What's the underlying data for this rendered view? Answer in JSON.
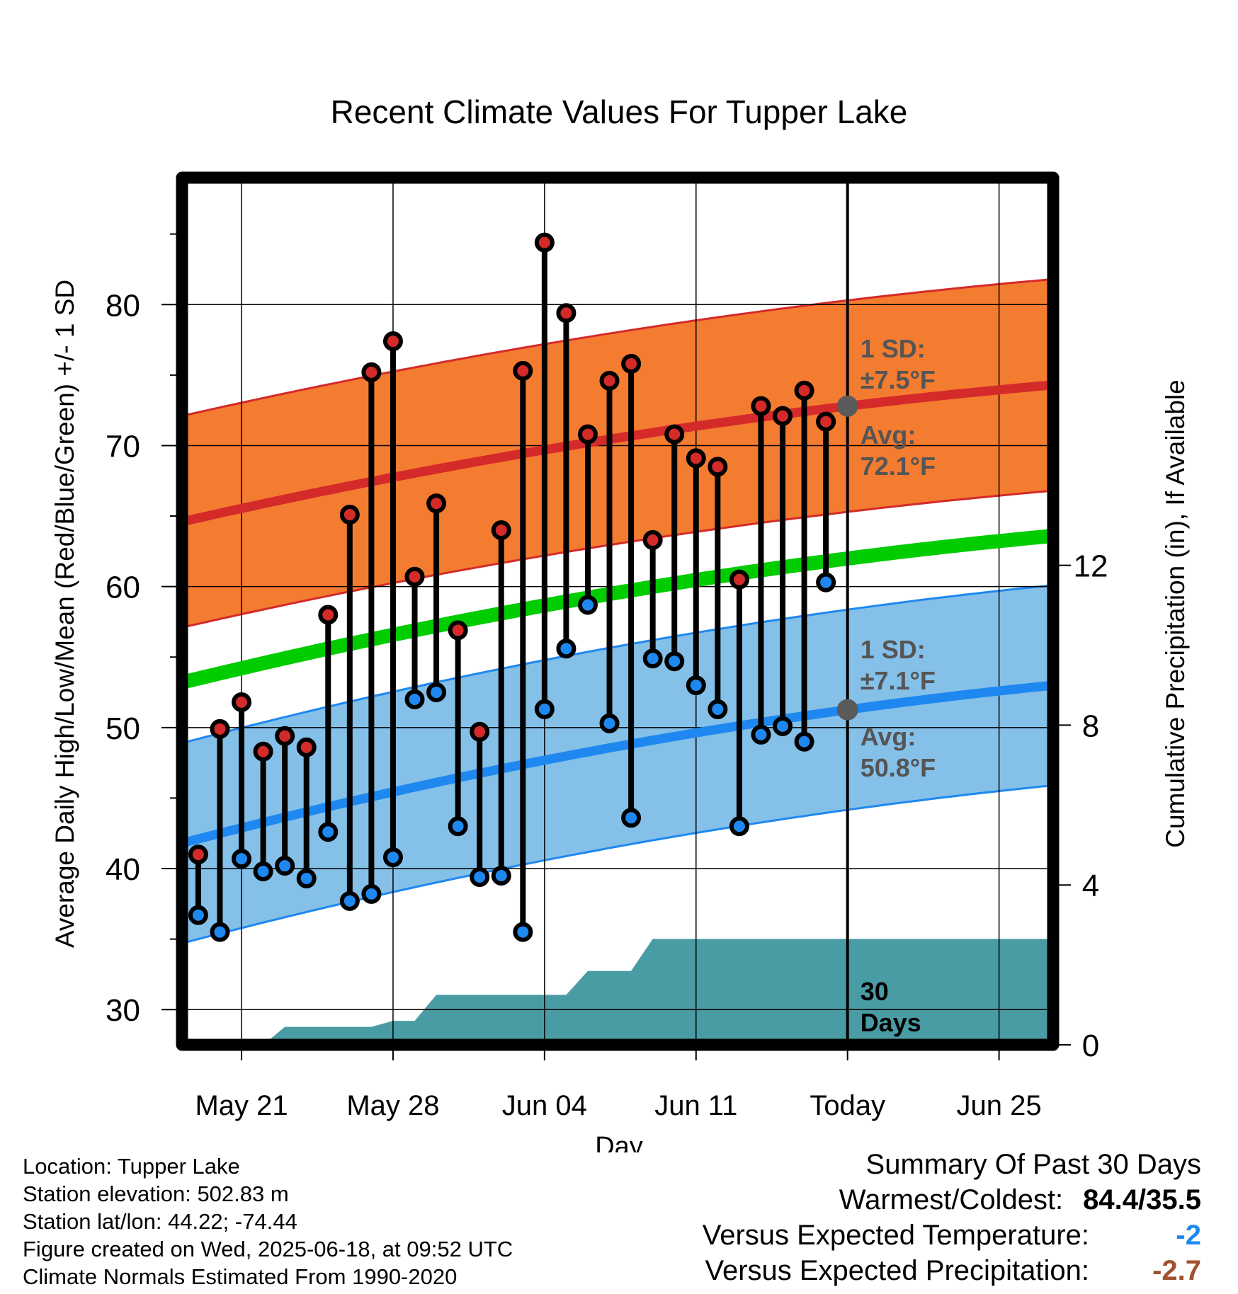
{
  "chart_data": {
    "type": "line",
    "title": "Recent Climate Values For Tupper Lake",
    "xlabel": "Day",
    "ylabel": "Average Daily High/Low/Mean (Red/Blue/Green) +/- 1 SD",
    "y2label": "Cumulative Precipitation (in), If Available",
    "ylim": [
      27.5,
      89
    ],
    "y2lim": [
      0,
      21.7
    ],
    "yticks": [
      30,
      40,
      50,
      60,
      70,
      80
    ],
    "y2ticks": [
      0,
      4,
      8,
      12
    ],
    "x_ticks": [
      {
        "day": 2,
        "label": "May 21"
      },
      {
        "day": 9,
        "label": "May 28"
      },
      {
        "day": 16,
        "label": "Jun 04"
      },
      {
        "day": 23,
        "label": "Jun 11"
      },
      {
        "day": 30,
        "label": "Today"
      },
      {
        "day": 37,
        "label": "Jun 25"
      }
    ],
    "xlim": [
      -0.75,
      39.5
    ],
    "today_day": 30,
    "grid": true,
    "normal_high": {
      "start": 64.6,
      "end": 74.3,
      "sd": 7.5,
      "color": "#d42a2a",
      "band_color": "#f47c30"
    },
    "normal_low": {
      "start": 41.8,
      "end": 53.0,
      "sd": 7.1,
      "color": "#1e88f0",
      "band_color": "#85c0e8"
    },
    "normal_mean": {
      "start": 53.2,
      "end": 63.6,
      "color": "#00cc00"
    },
    "series": [
      {
        "name": "High",
        "color": "#d42a2a",
        "values": [
          41.0,
          49.9,
          51.8,
          48.3,
          49.4,
          48.6,
          58.0,
          65.1,
          75.2,
          77.4,
          60.7,
          65.9,
          56.9,
          49.7,
          64.0,
          75.3,
          84.4,
          79.4,
          70.8,
          74.6,
          75.8,
          63.3,
          70.8,
          69.1,
          68.5,
          60.5,
          72.8,
          72.1,
          73.9,
          71.7
        ]
      },
      {
        "name": "Low",
        "color": "#1e88f0",
        "values": [
          36.7,
          35.5,
          40.7,
          39.8,
          40.2,
          39.3,
          42.6,
          37.7,
          38.2,
          40.8,
          52.0,
          52.5,
          43.0,
          39.4,
          39.5,
          35.5,
          51.3,
          55.6,
          58.7,
          50.3,
          43.6,
          54.9,
          54.7,
          53.0,
          51.3,
          43.0,
          49.5,
          50.1,
          49.0,
          60.3
        ]
      }
    ],
    "precip": {
      "color": "#4a9ca4",
      "values": [
        [
          -0.75,
          0
        ],
        [
          1,
          0
        ],
        [
          2,
          0
        ],
        [
          3,
          0
        ],
        [
          4,
          0.45
        ],
        [
          8,
          0.45
        ],
        [
          9,
          0.6
        ],
        [
          10,
          0.6
        ],
        [
          11,
          1.25
        ],
        [
          15,
          1.25
        ],
        [
          17,
          1.25
        ],
        [
          18,
          1.85
        ],
        [
          20,
          1.85
        ],
        [
          21,
          2.65
        ],
        [
          29,
          2.65
        ],
        [
          39.5,
          2.65
        ]
      ]
    },
    "annotations": {
      "high_sd": [
        "1 SD:",
        "±7.5°F"
      ],
      "high_avg": [
        "Avg:",
        "72.1°F"
      ],
      "low_sd": [
        "1 SD:",
        "±7.1°F"
      ],
      "low_avg": [
        "Avg:",
        "50.8°F"
      ],
      "days": [
        "30",
        "Days"
      ]
    }
  },
  "info": {
    "location": "Location: Tupper Lake",
    "elevation": "Station elevation: 502.83 m",
    "latlon": "Station lat/lon: 44.22; -74.44",
    "created": "Figure created on Wed, 2025-06-18, at 09:52 UTC",
    "normals": "Climate Normals Estimated From 1990-2020"
  },
  "summary": {
    "title": "Summary Of Past 30 Days",
    "warm_cold_label": "Warmest/Coldest:",
    "warm_cold_value": "84.4/35.5",
    "temp_label": "Versus Expected Temperature:",
    "temp_value": "-2",
    "temp_color": "#1e88f0",
    "precip_label": "Versus Expected Precipitation:",
    "precip_value": "-2.7",
    "precip_color": "#a0522d"
  }
}
